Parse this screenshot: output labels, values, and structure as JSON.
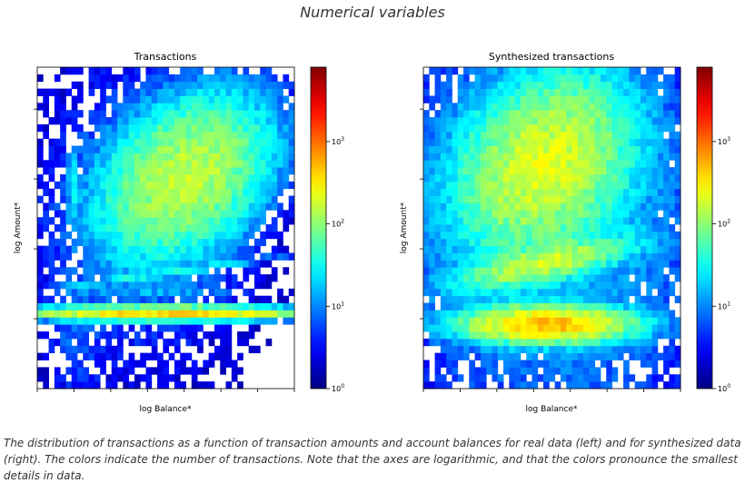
{
  "page": {
    "heading": "Numerical variables",
    "caption": "The distribution of transactions as a function of transaction amounts and account balances for real data (left) and for synthesized data (right). The colors indicate the number of transactions. Note that the axes are logarithmic, and that the colors pronounce the smallest details in data."
  },
  "colors": {
    "jet_low": "#00007f",
    "jet_high": "#7f0000",
    "axis": "#000000"
  },
  "chart_data": [
    {
      "type": "heatmap",
      "title": "Transactions",
      "xlabel": "log Balance*",
      "ylabel": "log Amount*",
      "colorbar": {
        "scale": "log",
        "range": [
          1,
          8000
        ],
        "ticks": [
          {
            "value": 1,
            "base": "10",
            "exp": "0"
          },
          {
            "value": 10,
            "base": "10",
            "exp": "1"
          },
          {
            "value": 100,
            "base": "10",
            "exp": "2"
          },
          {
            "value": 1000,
            "base": "10",
            "exp": "3"
          }
        ]
      },
      "x_range": [
        0,
        1
      ],
      "y_range": [
        0,
        1
      ],
      "grid_bins": 45,
      "sparse_cutoff": 1.5,
      "components": [
        {
          "x": 0.58,
          "y": 0.66,
          "sx": 0.17,
          "sy": 0.13,
          "peak": 2.2,
          "rho": 0.35
        },
        {
          "x": 0.47,
          "y": 0.74,
          "sx": 0.08,
          "sy": 0.05,
          "peak": 0.9,
          "rho": 0.0
        },
        {
          "x": 0.5,
          "y": 0.36,
          "sx": 0.24,
          "sy": 0.028,
          "peak": 1.4,
          "rho": 0.97
        },
        {
          "x": 0.5,
          "y": 0.235,
          "sx": 0.28,
          "sy": 0.011,
          "peak": 2.6,
          "rho": 0.0
        },
        {
          "x": 0.45,
          "y": 0.3,
          "sx": 0.25,
          "sy": 0.012,
          "peak": 0.8,
          "rho": 0.0
        },
        {
          "x": 0.14,
          "y": 0.62,
          "sx": 0.012,
          "sy": 0.07,
          "peak": 1.3,
          "rho": 0.0
        },
        {
          "x": 0.42,
          "y": 0.55,
          "sx": 0.32,
          "sy": 0.4,
          "peak": 0.8,
          "rho": 0.0
        },
        {
          "x": 0.15,
          "y": 0.15,
          "sx": 0.06,
          "sy": 0.12,
          "peak": 0.7,
          "rho": 0.0
        }
      ]
    },
    {
      "type": "heatmap",
      "title": "Synthesized transactions",
      "xlabel": "log Balance*",
      "ylabel": "log Amount*",
      "colorbar": {
        "scale": "log",
        "range": [
          1,
          8000
        ],
        "ticks": [
          {
            "value": 1,
            "base": "10",
            "exp": "0"
          },
          {
            "value": 10,
            "base": "10",
            "exp": "1"
          },
          {
            "value": 100,
            "base": "10",
            "exp": "2"
          },
          {
            "value": 1000,
            "base": "10",
            "exp": "3"
          }
        ]
      },
      "x_range": [
        0,
        1
      ],
      "y_range": [
        0,
        1
      ],
      "grid_bins": 45,
      "sparse_cutoff": 1.5,
      "components": [
        {
          "x": 0.47,
          "y": 0.7,
          "sx": 0.17,
          "sy": 0.14,
          "peak": 2.3,
          "rho": 0.25
        },
        {
          "x": 0.47,
          "y": 0.39,
          "sx": 0.17,
          "sy": 0.04,
          "peak": 2.2,
          "rho": 0.7
        },
        {
          "x": 0.48,
          "y": 0.2,
          "sx": 0.16,
          "sy": 0.028,
          "peak": 2.7,
          "rho": 0.0
        },
        {
          "x": 0.5,
          "y": 0.52,
          "sx": 0.38,
          "sy": 0.4,
          "peak": 1.25,
          "rho": 0.0
        }
      ]
    }
  ]
}
